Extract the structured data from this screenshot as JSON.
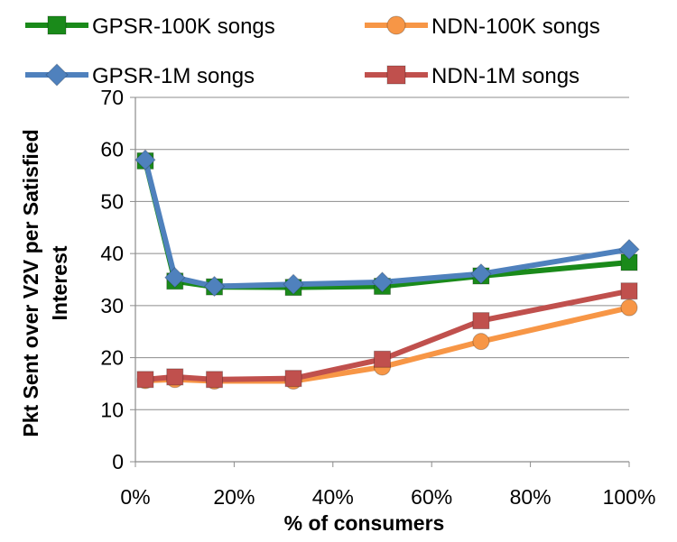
{
  "chart_data": {
    "type": "line",
    "title": "",
    "xlabel": "% of consumers",
    "ylabel_line1": "Pkt Sent over V2V per Satisfied",
    "ylabel_line2": "Interest",
    "xlim": [
      0,
      1
    ],
    "ylim": [
      0,
      70
    ],
    "x_ticks": [
      0,
      0.2,
      0.4,
      0.6,
      0.8,
      1.0
    ],
    "x_tick_labels": [
      "0%",
      "20%",
      "40%",
      "60%",
      "80%",
      "100%"
    ],
    "y_ticks": [
      0,
      10,
      20,
      30,
      40,
      50,
      60,
      70
    ],
    "y_tick_labels": [
      "0",
      "10",
      "20",
      "30",
      "40",
      "50",
      "60",
      "70"
    ],
    "grid": "horizontal",
    "legend_position": "top",
    "series": [
      {
        "name": "GPSR-100K songs",
        "color": "#1a8a1a",
        "marker": "square",
        "x": [
          0.02,
          0.08,
          0.16,
          0.32,
          0.5,
          0.7,
          1.0
        ],
        "values": [
          57.8,
          34.7,
          33.6,
          33.5,
          33.7,
          35.7,
          38.3
        ]
      },
      {
        "name": "GPSR-1M songs",
        "color": "#4f81bd",
        "marker": "diamond",
        "x": [
          0.02,
          0.08,
          0.16,
          0.32,
          0.5,
          0.7,
          1.0
        ],
        "values": [
          58.0,
          35.4,
          33.7,
          34.1,
          34.5,
          36.1,
          40.8
        ]
      },
      {
        "name": "NDN-100K songs",
        "color": "#f79646",
        "marker": "circle",
        "x": [
          0.02,
          0.08,
          0.16,
          0.32,
          0.5,
          0.7,
          1.0
        ],
        "values": [
          15.6,
          15.8,
          15.5,
          15.5,
          18.2,
          23.1,
          29.6
        ]
      },
      {
        "name": "NDN-1M songs",
        "color": "#c0504d",
        "marker": "square",
        "x": [
          0.02,
          0.08,
          0.16,
          0.32,
          0.5,
          0.7,
          1.0
        ],
        "values": [
          15.8,
          16.3,
          15.8,
          16.0,
          19.7,
          27.1,
          32.8
        ]
      }
    ]
  }
}
